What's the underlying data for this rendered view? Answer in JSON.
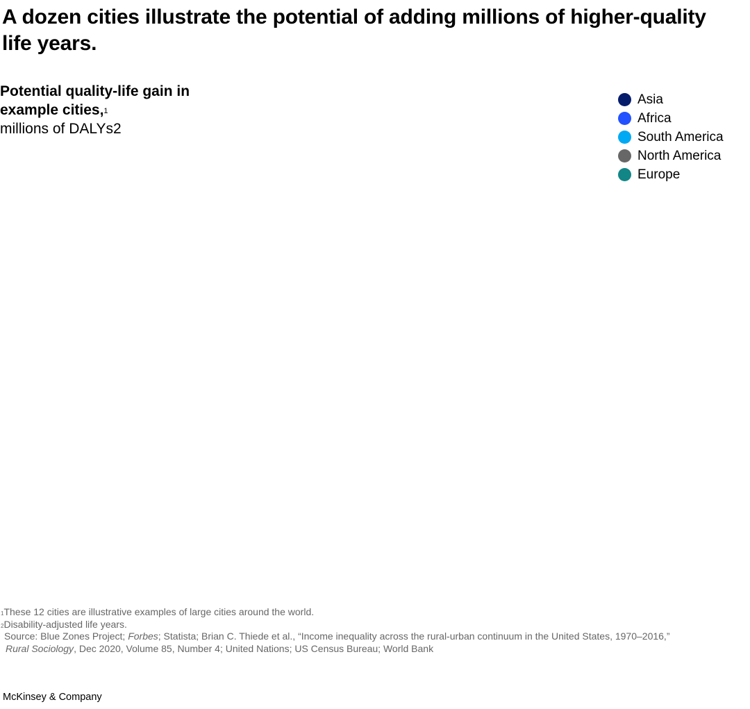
{
  "headline": "A dozen cities illustrate the potential of adding millions of higher-quality life years.",
  "chart_data": {
    "type": "scatter",
    "title": "Potential quality-life gain in example cities,",
    "title_footnote_marker": "1",
    "unit": "millions of DALYs",
    "unit_footnote_marker": "2",
    "legend": [
      {
        "name": "Asia",
        "color": "#051c6b"
      },
      {
        "name": "Africa",
        "color": "#2251ff"
      },
      {
        "name": "South America",
        "color": "#00a9f4"
      },
      {
        "name": "North America",
        "color": "#676767"
      },
      {
        "name": "Europe",
        "color": "#128686"
      }
    ],
    "legend_placement": "top-right",
    "series": [],
    "grid": false
  },
  "footnotes": {
    "note1_marker": "1",
    "note1": "These 12 cities are illustrative examples of large cities around the world.",
    "note2_marker": "2",
    "note2": "Disability-adjusted life years.",
    "source_prefix": "Source: Blue Zones Project; ",
    "source_italic1": "Forbes",
    "source_mid": "; Statista; Brian C. Thiede et al., “Income inequality across the rural-urban continuum in the United States, 1970–2016,”",
    "source_italic2": "Rural Sociology",
    "source_end": ", Dec 2020, Volume 85, Number 4; United Nations; US Census Bureau; World Bank"
  },
  "footer": {
    "brand": "McKinsey & Company"
  }
}
